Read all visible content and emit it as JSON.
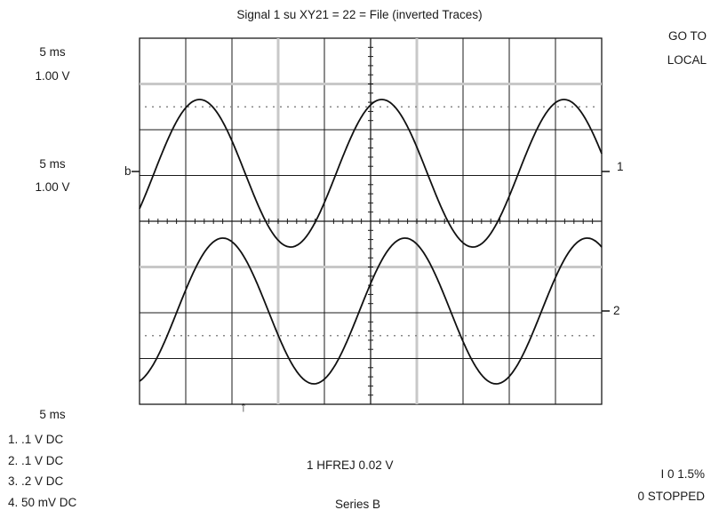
{
  "title": "Signal 1 su XY21 = 22 = File (inverted Traces)",
  "menu": {
    "line1": "GO TO",
    "line2": "LOCAL"
  },
  "ch_settings": [
    {
      "time": "5 ms",
      "volts": "1.00 V"
    },
    {
      "time": "5 ms",
      "volts": "1.00 V"
    }
  ],
  "markers": {
    "b": "b",
    "trace1": "1",
    "trace2": "2",
    "trigger": "↑"
  },
  "timebase": "5 ms",
  "channels": [
    "1.  .1 V DC",
    "2.  .1 V DC",
    "3.  .2 V DC",
    "4.  50 mV DC"
  ],
  "trigger_info": "1 HFREJ 0.02 V",
  "status": {
    "line1": "I 0 1.5%",
    "line2": "0 STOPPED"
  },
  "series_label": "Series B",
  "colors": {
    "grid": "#1a1a1a",
    "grid_light": "#c8c8c8",
    "trace": "#111111",
    "dots": "#888888"
  }
}
